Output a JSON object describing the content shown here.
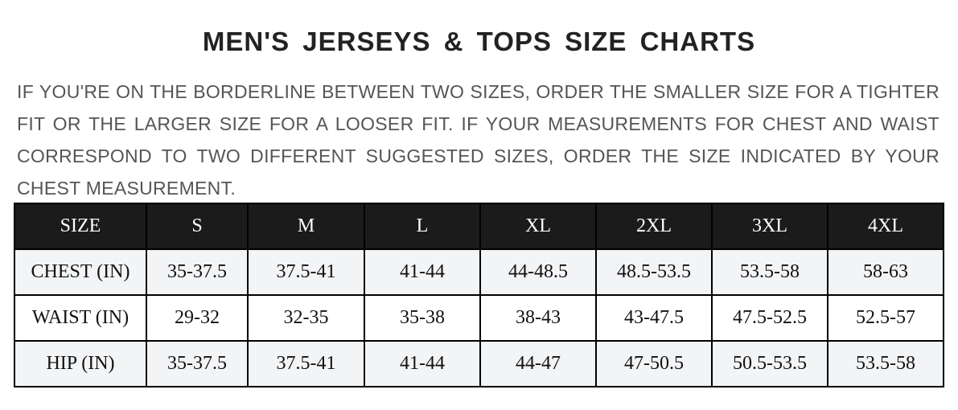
{
  "title": "MEN'S JERSEYS & TOPS SIZE CHARTS",
  "note": "IF YOU'RE ON THE BORDERLINE BETWEEN TWO SIZES, ORDER THE SMALLER SIZE FOR A TIGHTER FIT OR THE LARGER SIZE FOR A LOOSER FIT. IF YOUR MEASUREMENTS FOR CHEST AND WAIST CORRESPOND TO TWO DIFFERENT SUGGESTED SIZES, ORDER THE SIZE INDICATED BY YOUR CHEST MEASUREMENT.",
  "table": {
    "headers": [
      "SIZE",
      "S",
      "M",
      "L",
      "XL",
      "2XL",
      "3XL",
      "4XL"
    ],
    "rows": [
      [
        "CHEST (IN)",
        "35-37.5",
        "37.5-41",
        "41-44",
        "44-48.5",
        "48.5-53.5",
        "53.5-58",
        "58-63"
      ],
      [
        "WAIST (IN)",
        "29-32",
        "32-35",
        "35-38",
        "38-43",
        "43-47.5",
        "47.5-52.5",
        "52.5-57"
      ],
      [
        "HIP (IN)",
        "35-37.5",
        "37.5-41",
        "41-44",
        "44-47",
        "47-50.5",
        "50.5-53.5",
        "53.5-58"
      ]
    ]
  },
  "colors": {
    "header_bg": "#1b1b1b",
    "alt_row_bg": "#f3f4f6",
    "title": "#222222",
    "note": "#555555"
  }
}
